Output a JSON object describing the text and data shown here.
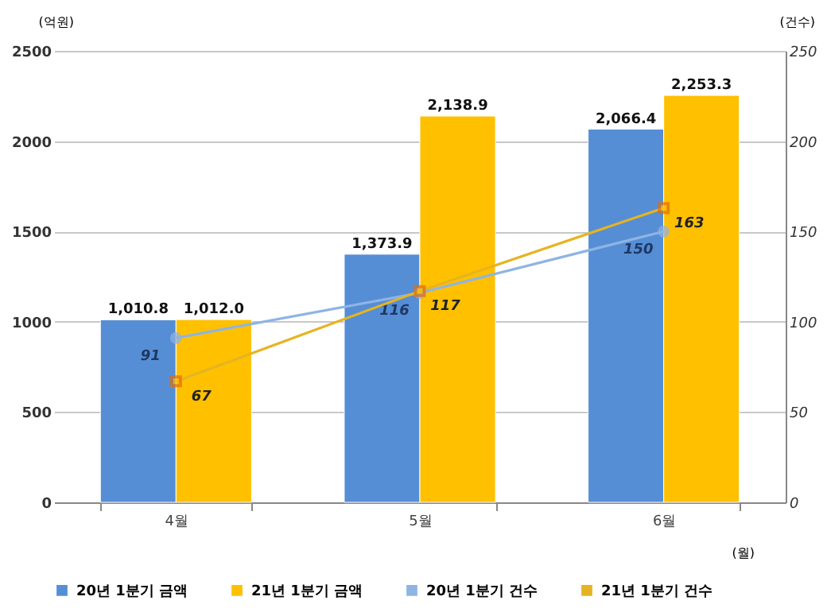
{
  "chart_data": {
    "type": "bar",
    "categories": [
      "4월",
      "5월",
      "6월"
    ],
    "xlabel": "(월)",
    "ylabel": "(억원)",
    "y2label": "(건수)",
    "ylim": [
      0,
      2500
    ],
    "yticks": [
      0,
      500,
      1000,
      1500,
      2000,
      2500
    ],
    "y2lim": [
      0,
      250
    ],
    "y2ticks": [
      0,
      50,
      100,
      150,
      200,
      250
    ],
    "grid": "y",
    "legend": "bottom",
    "data_labels": true,
    "series": [
      {
        "name": "20년 1분기 금액",
        "color": "#558ed5",
        "values": [
          1010.8,
          1373.9,
          2066.4
        ],
        "value_labels": [
          "1,010.8",
          "1,373.9",
          "2,066.4"
        ]
      },
      {
        "name": "21년 1분기 금액",
        "color": "#ffc000",
        "values": [
          1012.0,
          2138.9,
          2253.3
        ],
        "value_labels": [
          "1,012.0",
          "2,138.9",
          "2,253.3"
        ]
      },
      {
        "name": "20년 1분기 건수",
        "color": "#8eb4e3",
        "type": "line",
        "axis": "y2",
        "marker": "circle",
        "values": [
          91,
          116,
          150
        ]
      },
      {
        "name": "21년 1분기 건수",
        "color": "#e6b422",
        "type": "line",
        "axis": "y2",
        "marker": "square",
        "values": [
          67,
          117,
          163
        ]
      }
    ]
  }
}
